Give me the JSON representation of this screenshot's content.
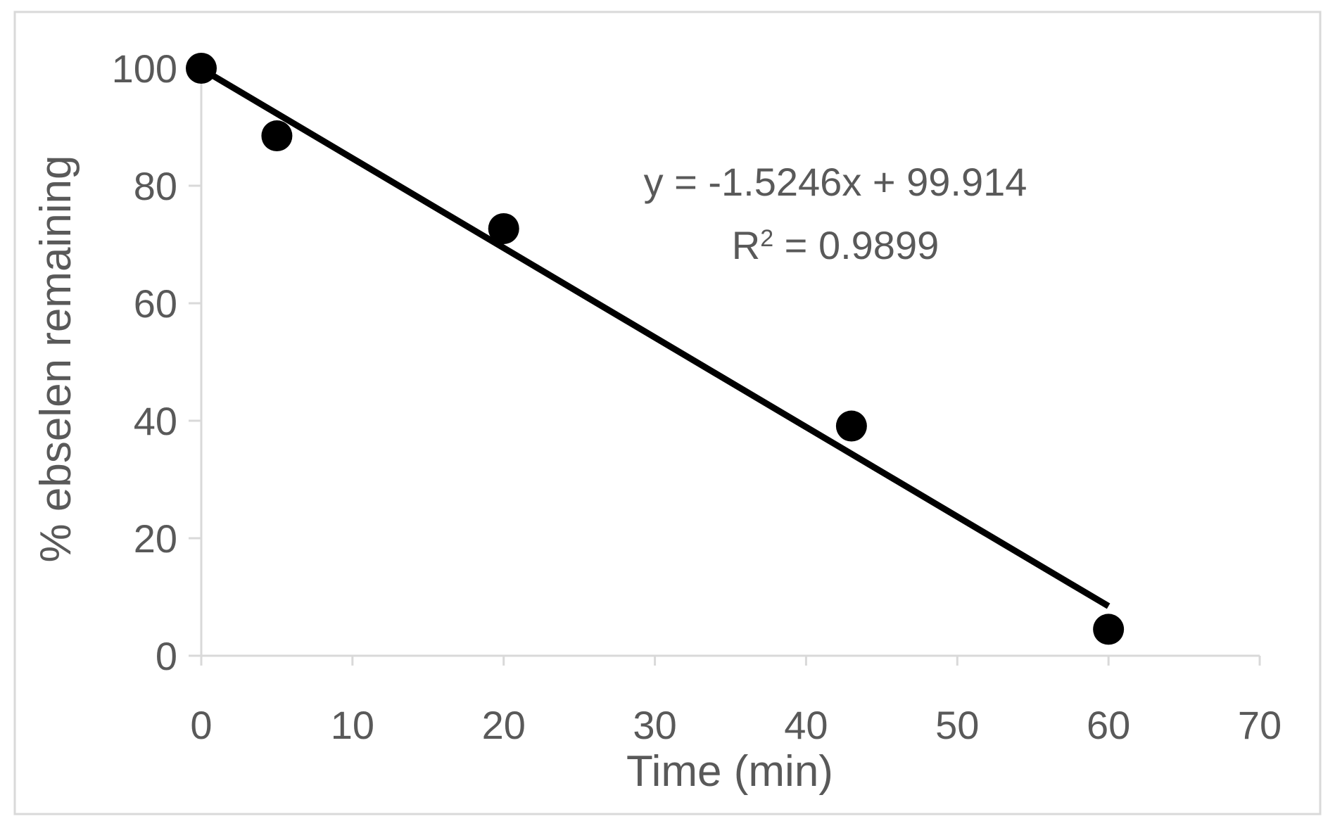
{
  "chart_data": {
    "type": "scatter",
    "title": "",
    "xlabel": "Time (min)",
    "ylabel": "% ebselen remaining",
    "xlim": [
      0,
      70
    ],
    "ylim": [
      0,
      100
    ],
    "x_ticks": [
      "0",
      "10",
      "20",
      "30",
      "40",
      "50",
      "60",
      "70"
    ],
    "y_ticks": [
      "0",
      "20",
      "40",
      "60",
      "80",
      "100"
    ],
    "grid": false,
    "legend": "none",
    "marker_color": "#000000",
    "series": [
      {
        "x": [
          0,
          5,
          20,
          43,
          60
        ],
        "y": [
          100,
          88.5,
          72.7,
          39.1,
          4.5
        ]
      }
    ],
    "trendline": {
      "slope": -1.5246,
      "intercept": 99.914,
      "x_range": [
        0,
        60
      ],
      "equation": "y = -1.5246x + 99.914",
      "r2_prefix": "R",
      "r2_sup": "2",
      "r2_value": " = 0.9899"
    }
  }
}
